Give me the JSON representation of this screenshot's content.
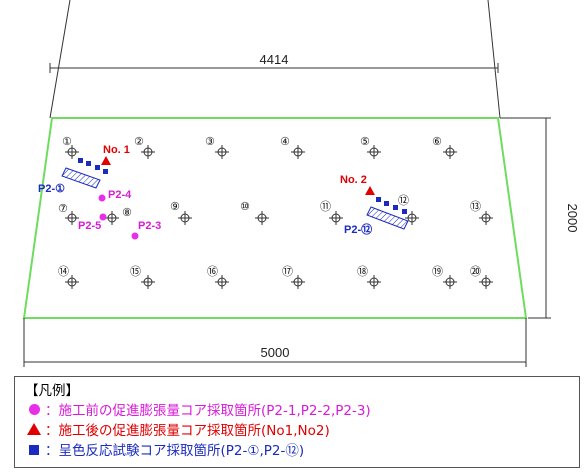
{
  "dimensions": {
    "top": "4414",
    "bottom": "5000",
    "right": "2000"
  },
  "grid_points": {
    "row1": [
      "①",
      "②",
      "③",
      "④",
      "⑤",
      "⑥"
    ],
    "row2": [
      "⑦",
      "⑧",
      "⑨",
      "⑩",
      "⑪",
      "⑫",
      "⑬"
    ],
    "row3": [
      "⑭",
      "⑮",
      "⑯",
      "⑰",
      "⑱",
      "⑲",
      "⑳"
    ]
  },
  "markers": {
    "no1": "No. 1",
    "no2": "No. 2",
    "p2_4": "P2-4",
    "p2_5": "P2-5",
    "p2_3": "P2-3",
    "p2_circ1": "P2-①",
    "p2_circ12": "P2-⑫"
  },
  "legend": {
    "title": "【凡例】",
    "items": [
      {
        "symbol": "circle",
        "color": "#e82ee8",
        "text": "：施工前の促進膨張量コア採取箇所(P2-1,P2-2,P2-3)"
      },
      {
        "symbol": "triangle",
        "color": "#e00000",
        "text": "：施工後の促進膨張量コア採取箇所(No1,No2)"
      },
      {
        "symbol": "square",
        "color": "#1b2bbf",
        "text": "：呈色反応試験コア採取箇所(P2-①,P2-⑫)"
      }
    ]
  }
}
